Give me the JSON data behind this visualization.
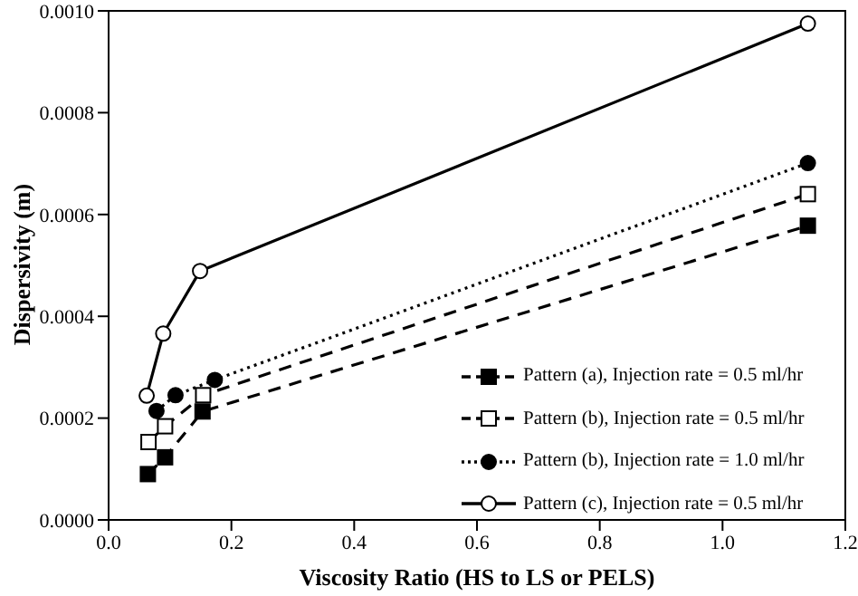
{
  "chart_data": {
    "type": "line",
    "xlabel": "Viscosity Ratio (HS to LS or PELS)",
    "ylabel": "Dispersivity (m)",
    "xlim": [
      0,
      1.2
    ],
    "xticks": [
      {
        "value": 0,
        "label": "0.0"
      },
      {
        "value": 0.2,
        "label": "0.2"
      },
      {
        "value": 0.4,
        "label": "0.4"
      },
      {
        "value": 0.6,
        "label": "0.6"
      },
      {
        "value": 0.8,
        "label": "0.8"
      },
      {
        "value": 1,
        "label": "1.0"
      },
      {
        "value": 1.2,
        "label": "1.2"
      }
    ],
    "ylim": [
      0,
      0.001
    ],
    "yticks": [
      {
        "value": 0,
        "label": "0.0000"
      },
      {
        "value": 0.0002,
        "label": "0.0002"
      },
      {
        "value": 0.0004,
        "label": "0.0004"
      },
      {
        "value": 0.0006,
        "label": "0.0006"
      },
      {
        "value": 0.0008,
        "label": "0.0008"
      },
      {
        "value": 0.001,
        "label": "0.0010"
      }
    ],
    "grid": false,
    "legend": "bottom right",
    "series": [
      {
        "name": "Pattern (a), Injection rate = 0.5 ml/hr",
        "color": "#000000",
        "marker": "square",
        "line_style": "dashed",
        "x": [
          0.064,
          0.092,
          0.153,
          1.139
        ],
        "values": [
          9e-05,
          0.000123,
          0.000213,
          0.000578
        ]
      },
      {
        "name": "Pattern (b), Injection rate = 0.5 ml/hr",
        "color": "#000000",
        "marker": "square-open",
        "line_style": "dashed",
        "x": [
          0.065,
          0.092,
          0.154,
          1.139
        ],
        "values": [
          0.000153,
          0.000184,
          0.000245,
          0.00064
        ]
      },
      {
        "name": "Pattern (b), Injection rate = 1.0 ml/hr",
        "color": "#000000",
        "marker": "circle",
        "line_style": "dotted",
        "x": [
          0.078,
          0.109,
          0.173,
          1.139
        ],
        "values": [
          0.000214,
          0.000245,
          0.000275,
          0.000701
        ]
      },
      {
        "name": "Pattern (c), Injection rate = 0.5 ml/hr",
        "color": "#000000",
        "marker": "circle-open",
        "line_style": "solid",
        "x": [
          0.062,
          0.089,
          0.149,
          1.139
        ],
        "values": [
          0.000244,
          0.000366,
          0.000489,
          0.000975
        ]
      }
    ]
  }
}
